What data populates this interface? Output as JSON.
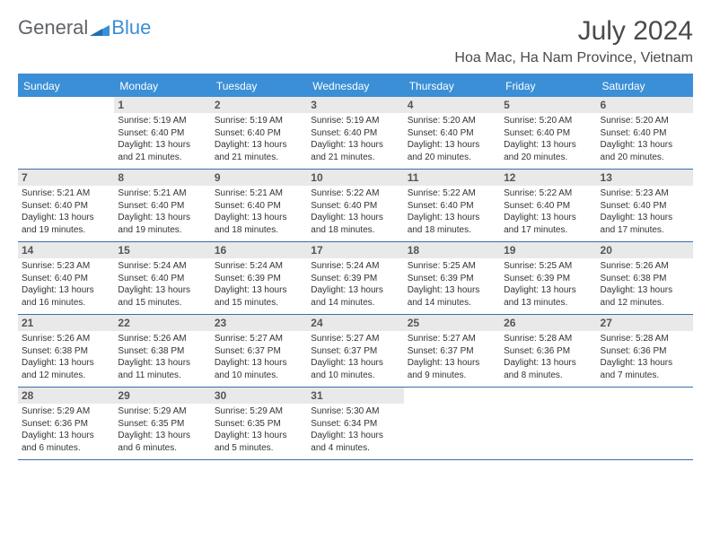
{
  "logo": {
    "text1": "General",
    "text2": "Blue"
  },
  "title": "July 2024",
  "location": "Hoa Mac, Ha Nam Province, Vietnam",
  "colors": {
    "header_bg": "#3a8fd6",
    "header_text": "#ffffff",
    "daynum_bg": "#e9e9e9",
    "border": "#3a6fa8",
    "logo_general": "#5f6368",
    "logo_blue": "#3a8fd6",
    "title_color": "#4a4a4a"
  },
  "day_names": [
    "Sunday",
    "Monday",
    "Tuesday",
    "Wednesday",
    "Thursday",
    "Friday",
    "Saturday"
  ],
  "weeks": [
    [
      null,
      {
        "d": "1",
        "sr": "Sunrise: 5:19 AM",
        "ss": "Sunset: 6:40 PM",
        "dl": "Daylight: 13 hours and 21 minutes."
      },
      {
        "d": "2",
        "sr": "Sunrise: 5:19 AM",
        "ss": "Sunset: 6:40 PM",
        "dl": "Daylight: 13 hours and 21 minutes."
      },
      {
        "d": "3",
        "sr": "Sunrise: 5:19 AM",
        "ss": "Sunset: 6:40 PM",
        "dl": "Daylight: 13 hours and 21 minutes."
      },
      {
        "d": "4",
        "sr": "Sunrise: 5:20 AM",
        "ss": "Sunset: 6:40 PM",
        "dl": "Daylight: 13 hours and 20 minutes."
      },
      {
        "d": "5",
        "sr": "Sunrise: 5:20 AM",
        "ss": "Sunset: 6:40 PM",
        "dl": "Daylight: 13 hours and 20 minutes."
      },
      {
        "d": "6",
        "sr": "Sunrise: 5:20 AM",
        "ss": "Sunset: 6:40 PM",
        "dl": "Daylight: 13 hours and 20 minutes."
      }
    ],
    [
      {
        "d": "7",
        "sr": "Sunrise: 5:21 AM",
        "ss": "Sunset: 6:40 PM",
        "dl": "Daylight: 13 hours and 19 minutes."
      },
      {
        "d": "8",
        "sr": "Sunrise: 5:21 AM",
        "ss": "Sunset: 6:40 PM",
        "dl": "Daylight: 13 hours and 19 minutes."
      },
      {
        "d": "9",
        "sr": "Sunrise: 5:21 AM",
        "ss": "Sunset: 6:40 PM",
        "dl": "Daylight: 13 hours and 18 minutes."
      },
      {
        "d": "10",
        "sr": "Sunrise: 5:22 AM",
        "ss": "Sunset: 6:40 PM",
        "dl": "Daylight: 13 hours and 18 minutes."
      },
      {
        "d": "11",
        "sr": "Sunrise: 5:22 AM",
        "ss": "Sunset: 6:40 PM",
        "dl": "Daylight: 13 hours and 18 minutes."
      },
      {
        "d": "12",
        "sr": "Sunrise: 5:22 AM",
        "ss": "Sunset: 6:40 PM",
        "dl": "Daylight: 13 hours and 17 minutes."
      },
      {
        "d": "13",
        "sr": "Sunrise: 5:23 AM",
        "ss": "Sunset: 6:40 PM",
        "dl": "Daylight: 13 hours and 17 minutes."
      }
    ],
    [
      {
        "d": "14",
        "sr": "Sunrise: 5:23 AM",
        "ss": "Sunset: 6:40 PM",
        "dl": "Daylight: 13 hours and 16 minutes."
      },
      {
        "d": "15",
        "sr": "Sunrise: 5:24 AM",
        "ss": "Sunset: 6:40 PM",
        "dl": "Daylight: 13 hours and 15 minutes."
      },
      {
        "d": "16",
        "sr": "Sunrise: 5:24 AM",
        "ss": "Sunset: 6:39 PM",
        "dl": "Daylight: 13 hours and 15 minutes."
      },
      {
        "d": "17",
        "sr": "Sunrise: 5:24 AM",
        "ss": "Sunset: 6:39 PM",
        "dl": "Daylight: 13 hours and 14 minutes."
      },
      {
        "d": "18",
        "sr": "Sunrise: 5:25 AM",
        "ss": "Sunset: 6:39 PM",
        "dl": "Daylight: 13 hours and 14 minutes."
      },
      {
        "d": "19",
        "sr": "Sunrise: 5:25 AM",
        "ss": "Sunset: 6:39 PM",
        "dl": "Daylight: 13 hours and 13 minutes."
      },
      {
        "d": "20",
        "sr": "Sunrise: 5:26 AM",
        "ss": "Sunset: 6:38 PM",
        "dl": "Daylight: 13 hours and 12 minutes."
      }
    ],
    [
      {
        "d": "21",
        "sr": "Sunrise: 5:26 AM",
        "ss": "Sunset: 6:38 PM",
        "dl": "Daylight: 13 hours and 12 minutes."
      },
      {
        "d": "22",
        "sr": "Sunrise: 5:26 AM",
        "ss": "Sunset: 6:38 PM",
        "dl": "Daylight: 13 hours and 11 minutes."
      },
      {
        "d": "23",
        "sr": "Sunrise: 5:27 AM",
        "ss": "Sunset: 6:37 PM",
        "dl": "Daylight: 13 hours and 10 minutes."
      },
      {
        "d": "24",
        "sr": "Sunrise: 5:27 AM",
        "ss": "Sunset: 6:37 PM",
        "dl": "Daylight: 13 hours and 10 minutes."
      },
      {
        "d": "25",
        "sr": "Sunrise: 5:27 AM",
        "ss": "Sunset: 6:37 PM",
        "dl": "Daylight: 13 hours and 9 minutes."
      },
      {
        "d": "26",
        "sr": "Sunrise: 5:28 AM",
        "ss": "Sunset: 6:36 PM",
        "dl": "Daylight: 13 hours and 8 minutes."
      },
      {
        "d": "27",
        "sr": "Sunrise: 5:28 AM",
        "ss": "Sunset: 6:36 PM",
        "dl": "Daylight: 13 hours and 7 minutes."
      }
    ],
    [
      {
        "d": "28",
        "sr": "Sunrise: 5:29 AM",
        "ss": "Sunset: 6:36 PM",
        "dl": "Daylight: 13 hours and 6 minutes."
      },
      {
        "d": "29",
        "sr": "Sunrise: 5:29 AM",
        "ss": "Sunset: 6:35 PM",
        "dl": "Daylight: 13 hours and 6 minutes."
      },
      {
        "d": "30",
        "sr": "Sunrise: 5:29 AM",
        "ss": "Sunset: 6:35 PM",
        "dl": "Daylight: 13 hours and 5 minutes."
      },
      {
        "d": "31",
        "sr": "Sunrise: 5:30 AM",
        "ss": "Sunset: 6:34 PM",
        "dl": "Daylight: 13 hours and 4 minutes."
      },
      null,
      null,
      null
    ]
  ]
}
